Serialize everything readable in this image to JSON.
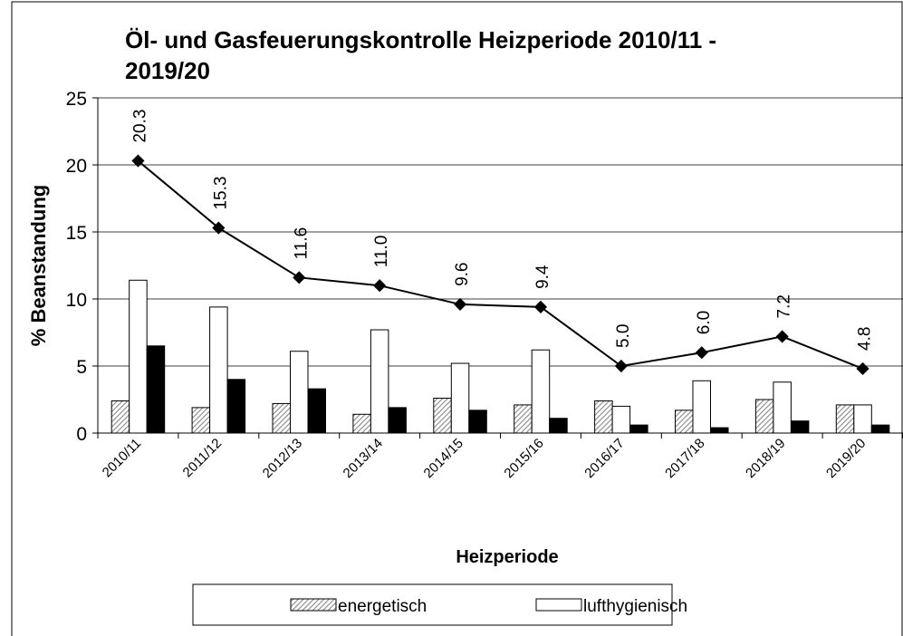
{
  "chart_data": {
    "type": "bar",
    "title": "Öl- und Gasfeuerungskontrolle Heizperiode 2010/11 -",
    "title_line2": "2019/20",
    "y_label": "% Beanstandung",
    "x_label": "Heizperiode",
    "categories": [
      "2010/11",
      "2011/12",
      "2012/13",
      "2013/14",
      "2014/15",
      "2015/16",
      "2016/17",
      "2017/18",
      "2018/19",
      "2019/20"
    ],
    "series": [
      {
        "name": "energetisch",
        "color": "#888888",
        "values": [
          2.4,
          1.9,
          2.2,
          1.4,
          2.6,
          2.1,
          2.4,
          1.7,
          2.5,
          2.1
        ]
      },
      {
        "name": "lufthygienisch",
        "color": "#ffffff",
        "values": [
          11.4,
          9.4,
          6.1,
          7.7,
          5.2,
          6.2,
          2.0,
          3.9,
          3.8,
          2.1
        ]
      },
      {
        "color": "#000000",
        "values": [
          6.5,
          4.0,
          3.3,
          1.9,
          1.7,
          1.1,
          0.6,
          0.4,
          0.9,
          0.6
        ]
      }
    ],
    "line": {
      "type": "line",
      "color": "#000000",
      "values": [
        20.3,
        15.3,
        11.6,
        11.0,
        9.6,
        9.4,
        5.0,
        6.0,
        7.2,
        4.8
      ],
      "value_labels": [
        "20.3",
        "15.3",
        "11.6",
        "11.0",
        "9.6",
        "9.4",
        "5.0",
        "6.0",
        "7.2",
        "4.8"
      ]
    },
    "ylim": [
      0,
      25
    ],
    "yticks": [
      0,
      5,
      10,
      15,
      20,
      25
    ],
    "grid": true
  }
}
